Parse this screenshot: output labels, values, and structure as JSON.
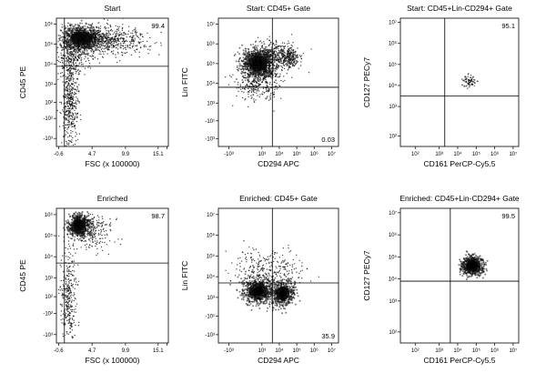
{
  "chart_data": [
    {
      "type": "scatter",
      "title": "Start",
      "xlabel": "FSC (x 100000)",
      "ylabel": "CD45 PE",
      "x_ticks": [
        "-0.6",
        "4.7",
        "9.9",
        "15.1",
        ""
      ],
      "y_ticks": [
        "-10³",
        "-10²",
        "10²",
        "10³",
        "10⁴",
        "10⁵",
        "10⁶"
      ],
      "gate": {
        "x": 3.2,
        "y": 4.2
      },
      "quadrant_percent": {
        "position": "top-right",
        "value": "99.4"
      },
      "populations": [
        {
          "x": 5.5,
          "y": 5.6,
          "sx": 1.3,
          "sy": 0.3,
          "n": 900,
          "dense": true
        },
        {
          "x": 8.5,
          "y": 5.5,
          "sx": 3.0,
          "sy": 0.35,
          "n": 700,
          "dense": false
        },
        {
          "x": 4.5,
          "y": 4.6,
          "sx": 1.0,
          "sy": 0.4,
          "n": 250,
          "dense": false
        },
        {
          "x": 4.0,
          "y": 2.4,
          "sx": 0.6,
          "sy": 1.1,
          "n": 450,
          "dense": false
        }
      ]
    },
    {
      "type": "scatter",
      "title": "Start: CD45+ Gate",
      "xlabel": "CD294 APC",
      "ylabel": "Lin FITC",
      "x_ticks": [
        "-10³",
        "10³",
        "10⁴",
        "10⁵",
        "10⁶",
        "10⁷"
      ],
      "y_ticks": [
        "-10³",
        "-10¹",
        "10³",
        "10⁴",
        "10⁵",
        "10⁶",
        "10⁷"
      ],
      "gate": {
        "x": 3.6,
        "y": 3.8
      },
      "quadrant_percent": {
        "position": "bottom-right",
        "value": "0.03"
      },
      "populations": [
        {
          "x": 2.8,
          "y": 5.0,
          "sx": 0.45,
          "sy": 0.35,
          "n": 1000,
          "dense": true
        },
        {
          "x": 3.6,
          "y": 5.4,
          "sx": 0.7,
          "sy": 0.35,
          "n": 400,
          "dense": false
        },
        {
          "x": 4.6,
          "y": 5.3,
          "sx": 0.25,
          "sy": 0.25,
          "n": 180,
          "dense": false
        },
        {
          "x": 2.8,
          "y": 4.0,
          "sx": 0.7,
          "sy": 0.55,
          "n": 350,
          "dense": false
        }
      ]
    },
    {
      "type": "scatter",
      "title": "Start: CD45+Lin-CD294+ Gate",
      "xlabel": "CD161 PerCP-Cy5.5",
      "ylabel": "CD127 PECy7",
      "x_ticks": [
        "10²",
        "10³",
        "10⁴",
        "10⁵",
        "10⁶",
        "10⁷"
      ],
      "y_ticks": [
        "10²",
        "10³",
        "10⁴",
        "10⁵",
        "10⁶",
        "10⁷"
      ],
      "gate": {
        "x": 3.3,
        "y": 3.5
      },
      "quadrant_percent": {
        "position": "top-right",
        "value": "95.1"
      },
      "populations": [
        {
          "x": 4.6,
          "y": 4.2,
          "sx": 0.18,
          "sy": 0.15,
          "n": 80,
          "dense": false
        }
      ]
    },
    {
      "type": "scatter",
      "title": "Enriched",
      "xlabel": "FSC (x 100000)",
      "ylabel": "CD45 PE",
      "x_ticks": [
        "-0.6",
        "4.7",
        "9.9",
        "15.1",
        ""
      ],
      "y_ticks": [
        "-10³",
        "-10²",
        "10²",
        "10³",
        "10⁴",
        "10⁵",
        "10⁶"
      ],
      "gate": {
        "x": 3.2,
        "y": 4.0
      },
      "quadrant_percent": {
        "position": "top-right",
        "value": "98.7"
      },
      "populations": [
        {
          "x": 5.2,
          "y": 5.8,
          "sx": 0.7,
          "sy": 0.25,
          "n": 700,
          "dense": true
        },
        {
          "x": 7.0,
          "y": 5.5,
          "sx": 1.6,
          "sy": 0.4,
          "n": 250,
          "dense": false
        },
        {
          "x": 3.8,
          "y": 2.4,
          "sx": 0.5,
          "sy": 1.1,
          "n": 320,
          "dense": false
        }
      ]
    },
    {
      "type": "scatter",
      "title": "Enriched: CD45+ Gate",
      "xlabel": "CD294 APC",
      "ylabel": "Lin FITC",
      "x_ticks": [
        "-10³",
        "10³",
        "10⁴",
        "10⁵",
        "10⁶",
        "10⁷"
      ],
      "y_ticks": [
        "-10³",
        "-10¹",
        "10³",
        "10⁴",
        "10⁵",
        "10⁶",
        "10⁷"
      ],
      "gate": {
        "x": 3.6,
        "y": 3.7
      },
      "quadrant_percent": {
        "position": "bottom-right",
        "value": "35.9"
      },
      "populations": [
        {
          "x": 2.8,
          "y": 3.3,
          "sx": 0.5,
          "sy": 0.35,
          "n": 500,
          "dense": true
        },
        {
          "x": 4.2,
          "y": 3.2,
          "sx": 0.35,
          "sy": 0.3,
          "n": 450,
          "dense": true
        },
        {
          "x": 3.3,
          "y": 4.2,
          "sx": 0.9,
          "sy": 0.6,
          "n": 350,
          "dense": false
        }
      ]
    },
    {
      "type": "scatter",
      "title": "Enriched: CD45+Lin-CD294+ Gate",
      "xlabel": "CD161 PerCP-Cy5.5",
      "ylabel": "CD127 PECy7",
      "x_ticks": [
        "10²",
        "10³",
        "10⁴",
        "10⁵",
        "10⁶",
        "10⁷"
      ],
      "y_ticks": [
        "10²",
        "10³",
        "10⁴",
        "10⁵",
        "10⁶",
        "10⁷"
      ],
      "gate": {
        "x": 3.6,
        "y": 3.9
      },
      "quadrant_percent": {
        "position": "top-right",
        "value": "99.5"
      },
      "populations": [
        {
          "x": 4.8,
          "y": 4.6,
          "sx": 0.28,
          "sy": 0.22,
          "n": 700,
          "dense": true
        }
      ]
    }
  ]
}
